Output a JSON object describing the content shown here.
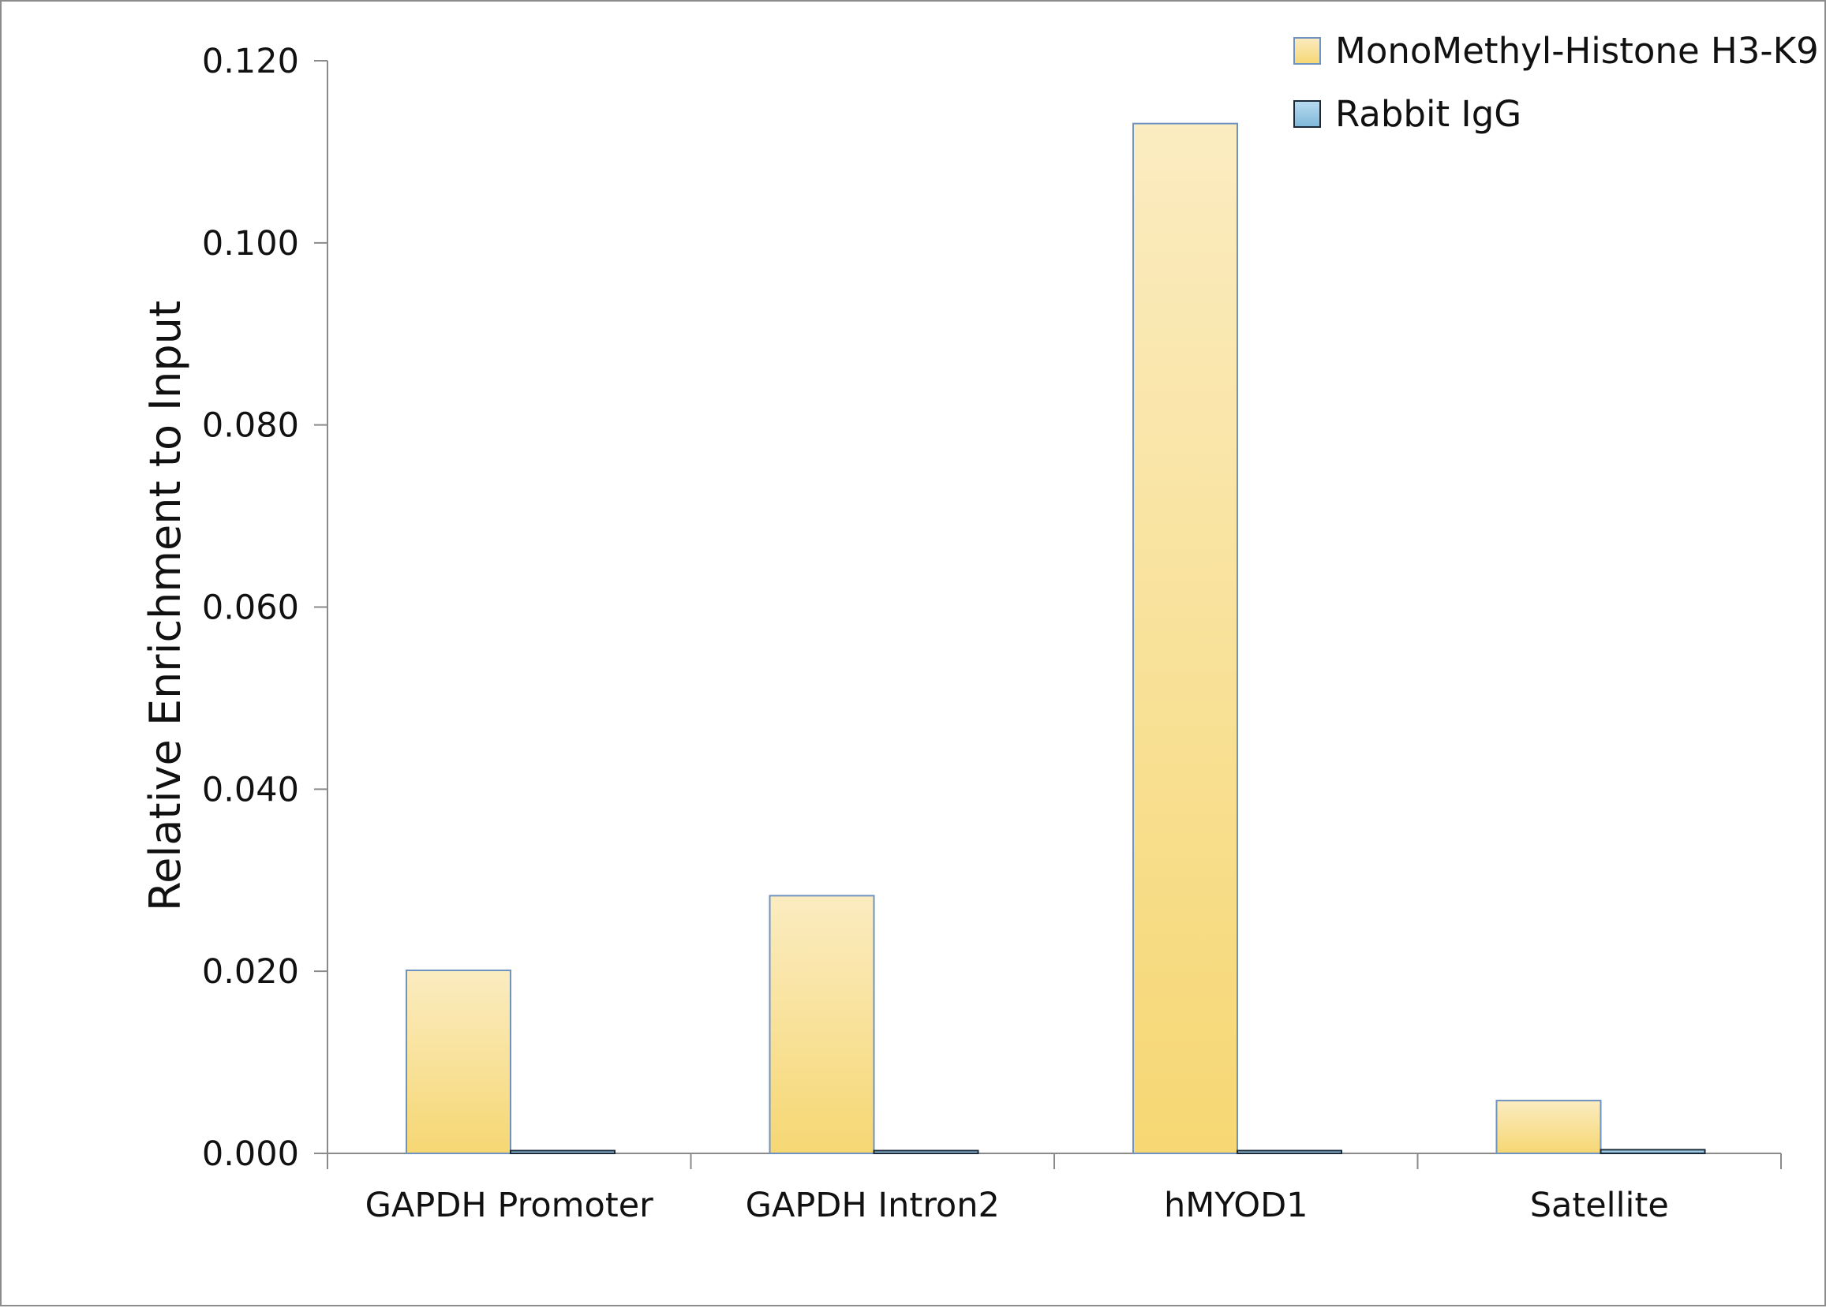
{
  "chart_data": {
    "type": "bar",
    "title": "",
    "xlabel": "",
    "ylabel": "Relative Enrichment to Input",
    "categories": [
      "GAPDH Promoter",
      "GAPDH Intron2",
      "hMYOD1",
      "Satellite"
    ],
    "series": [
      {
        "name": "MonoMethyl-Histone H3-K9",
        "values": [
          0.0201,
          0.0283,
          0.1131,
          0.0058
        ],
        "color_top": "#fbecc1",
        "color_bottom": "#f6d773",
        "stroke": "#6f93c1"
      },
      {
        "name": "Rabbit IgG",
        "values": [
          0.0003,
          0.0003,
          0.0003,
          0.0004
        ],
        "color_top": "#b9dcef",
        "color_bottom": "#7fb8da",
        "stroke": "#1b2a3a"
      }
    ],
    "ylim": [
      0,
      0.12
    ],
    "yticks": [
      "0.000",
      "0.020",
      "0.040",
      "0.060",
      "0.080",
      "0.100",
      "0.120"
    ],
    "grid": false,
    "legend_position": "top-right"
  }
}
